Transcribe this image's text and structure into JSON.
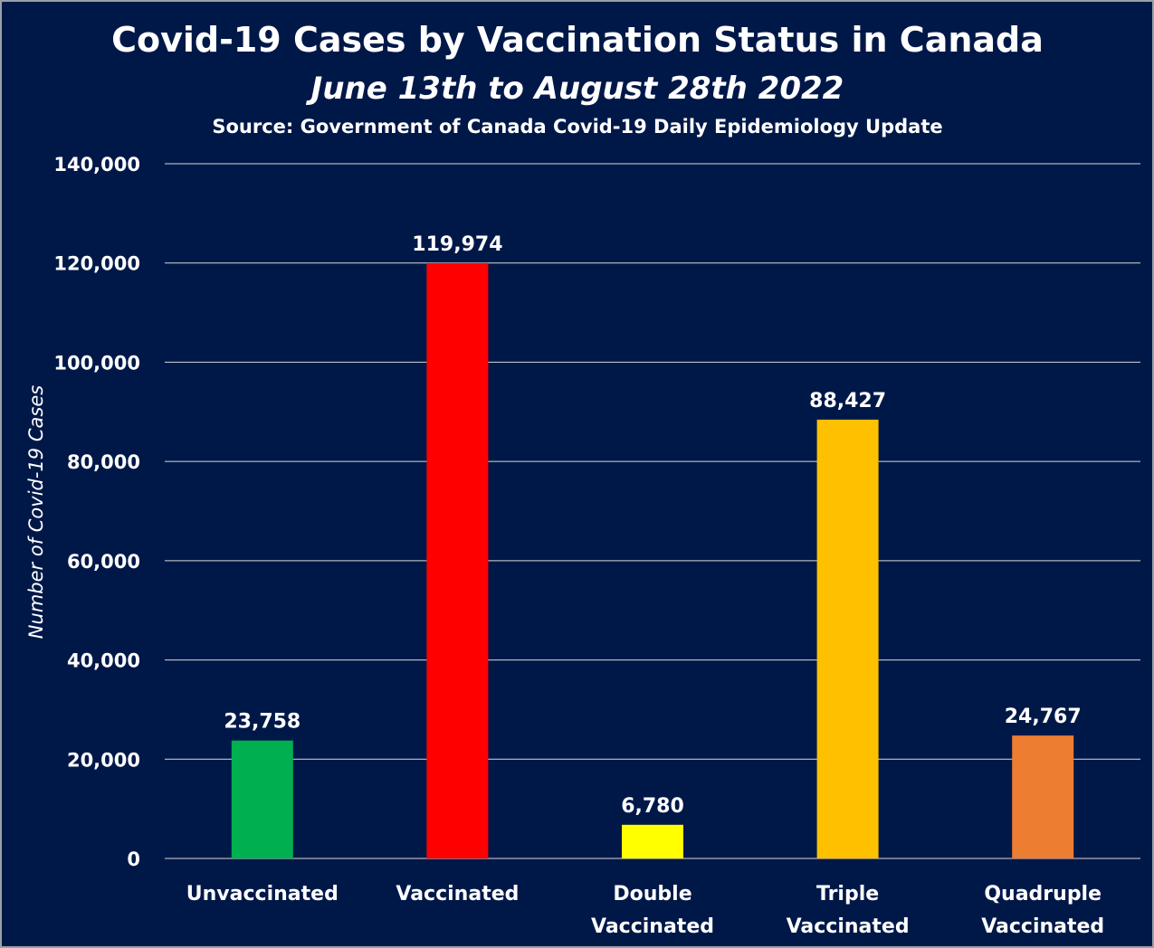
{
  "chart_data": {
    "type": "bar",
    "title": "Covid-19 Cases by Vaccination Status in Canada",
    "subtitle": "June 13th to August 28th 2022",
    "source": "Source: Government of Canada  Covid-19 Daily Epidemiology Update",
    "ylabel": "Number of Covid-19 Cases",
    "xlabel": "",
    "ylim": [
      0,
      140000
    ],
    "yticks": [
      0,
      20000,
      40000,
      60000,
      80000,
      100000,
      120000,
      140000
    ],
    "ytick_labels": [
      "0",
      "20,000",
      "40,000",
      "60,000",
      "80,000",
      "100,000",
      "120,000",
      "140,000"
    ],
    "grid": true,
    "legend": "none",
    "categories": [
      [
        "Unvaccinated"
      ],
      [
        "Vaccinated"
      ],
      [
        "Double",
        "Vaccinated"
      ],
      [
        "Triple",
        "Vaccinated"
      ],
      [
        "Quadruple",
        "Vaccinated"
      ]
    ],
    "values": [
      23758,
      119974,
      6780,
      88427,
      24767
    ],
    "data_labels": [
      "23,758",
      "119,974",
      "6,780",
      "88,427",
      "24,767"
    ],
    "colors": [
      "#00b050",
      "#ff0000",
      "#ffff00",
      "#ffc000",
      "#ed7d31"
    ]
  },
  "theme": {
    "background": "#001848",
    "text": "#ffffff",
    "grid": "#d9d9d9"
  }
}
